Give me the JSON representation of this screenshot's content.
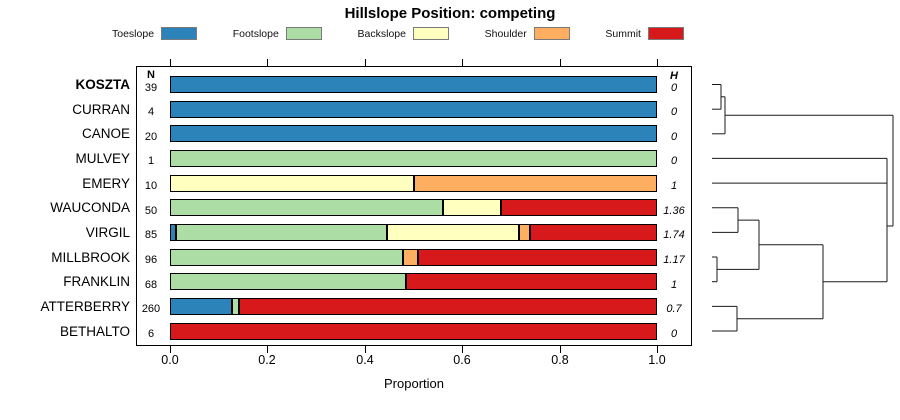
{
  "chart_data": {
    "type": "bar",
    "variant": "horizontal_stacked_proportion_with_dendrogram",
    "title": "Hillslope Position: competing",
    "xlabel": "Proportion",
    "xlim": [
      0,
      1
    ],
    "x_ticks": [
      "0.0",
      "0.2",
      "0.4",
      "0.6",
      "0.8",
      "1.0"
    ],
    "x_tick_values": [
      0,
      0.2,
      0.4,
      0.6,
      0.8,
      1.0
    ],
    "grid": false,
    "legend": {
      "position": "top",
      "entries": [
        {
          "label": "Toeslope",
          "color": "#2B83BA"
        },
        {
          "label": "Footslope",
          "color": "#ABDDA4"
        },
        {
          "label": "Backslope",
          "color": "#FFFFBF"
        },
        {
          "label": "Shoulder",
          "color": "#FDAE61"
        },
        {
          "label": "Summit",
          "color": "#D7191C"
        }
      ]
    },
    "columns": {
      "n_header": "N",
      "h_header": "H"
    },
    "rows": [
      {
        "series": "KOSZTA",
        "bold": true,
        "n": "39",
        "h": "0",
        "segments": [
          {
            "position": "Toeslope",
            "proportion": 1.0
          }
        ]
      },
      {
        "series": "CURRAN",
        "bold": false,
        "n": "4",
        "h": "0",
        "segments": [
          {
            "position": "Toeslope",
            "proportion": 1.0
          }
        ]
      },
      {
        "series": "CANOE",
        "bold": false,
        "n": "20",
        "h": "0",
        "segments": [
          {
            "position": "Toeslope",
            "proportion": 1.0
          }
        ]
      },
      {
        "series": "MULVEY",
        "bold": false,
        "n": "1",
        "h": "0",
        "segments": [
          {
            "position": "Footslope",
            "proportion": 1.0
          }
        ]
      },
      {
        "series": "EMERY",
        "bold": false,
        "n": "10",
        "h": "1",
        "segments": [
          {
            "position": "Backslope",
            "proportion": 0.5
          },
          {
            "position": "Shoulder",
            "proportion": 0.5
          }
        ]
      },
      {
        "series": "WAUCONDA",
        "bold": false,
        "n": "50",
        "h": "1.36",
        "segments": [
          {
            "position": "Footslope",
            "proportion": 0.56
          },
          {
            "position": "Backslope",
            "proportion": 0.12
          },
          {
            "position": "Summit",
            "proportion": 0.32
          }
        ]
      },
      {
        "series": "VIRGIL",
        "bold": false,
        "n": "85",
        "h": "1.74",
        "segments": [
          {
            "position": "Toeslope",
            "proportion": 0.012
          },
          {
            "position": "Footslope",
            "proportion": 0.434
          },
          {
            "position": "Backslope",
            "proportion": 0.271
          },
          {
            "position": "Shoulder",
            "proportion": 0.023
          },
          {
            "position": "Summit",
            "proportion": 0.26
          }
        ]
      },
      {
        "series": "MILLBROOK",
        "bold": false,
        "n": "96",
        "h": "1.17",
        "segments": [
          {
            "position": "Footslope",
            "proportion": 0.479
          },
          {
            "position": "Shoulder",
            "proportion": 0.031
          },
          {
            "position": "Summit",
            "proportion": 0.49
          }
        ]
      },
      {
        "series": "FRANKLIN",
        "bold": false,
        "n": "68",
        "h": "1",
        "segments": [
          {
            "position": "Footslope",
            "proportion": 0.485
          },
          {
            "position": "Summit",
            "proportion": 0.515
          }
        ]
      },
      {
        "series": "ATTERBERRY",
        "bold": false,
        "n": "260",
        "h": "0.7",
        "segments": [
          {
            "position": "Toeslope",
            "proportion": 0.127
          },
          {
            "position": "Footslope",
            "proportion": 0.015
          },
          {
            "position": "Summit",
            "proportion": 0.858
          }
        ]
      },
      {
        "series": "BETHALTO",
        "bold": false,
        "n": "6",
        "h": "0",
        "segments": [
          {
            "position": "Summit",
            "proportion": 1.0
          }
        ]
      }
    ],
    "dendrogram": {
      "description": "right-side cluster tree; segments as [heightOffsetPx1, rowIndex1, heightOffsetPx2, rowIndex2], 0 offset = leaf tips",
      "color": "#1a1a1a",
      "segments": [
        [
          0,
          0,
          9,
          0
        ],
        [
          0,
          1,
          9,
          1
        ],
        [
          9,
          0,
          9,
          1
        ],
        [
          9,
          0.5,
          13,
          0.5
        ],
        [
          0,
          2,
          13,
          2
        ],
        [
          13,
          0.5,
          13,
          2
        ],
        [
          13,
          1.25,
          181,
          1.25
        ],
        [
          0,
          3,
          175,
          3
        ],
        [
          0,
          4,
          175,
          4
        ],
        [
          0,
          5,
          26,
          5
        ],
        [
          0,
          6,
          26,
          6
        ],
        [
          26,
          5,
          26,
          6
        ],
        [
          26,
          5.5,
          47,
          5.5
        ],
        [
          0,
          7,
          5,
          7
        ],
        [
          0,
          8,
          5,
          8
        ],
        [
          5,
          7,
          5,
          8
        ],
        [
          5,
          7.5,
          47,
          7.5
        ],
        [
          47,
          5.5,
          47,
          7.5
        ],
        [
          47,
          6.5,
          111,
          6.5
        ],
        [
          0,
          9,
          25,
          9
        ],
        [
          0,
          10,
          25,
          10
        ],
        [
          25,
          9,
          25,
          10
        ],
        [
          25,
          9.5,
          111,
          9.5
        ],
        [
          111,
          6.5,
          111,
          9.5
        ],
        [
          111,
          8,
          175,
          8
        ],
        [
          175,
          3,
          175,
          8
        ],
        [
          175,
          5.74,
          181,
          5.74
        ],
        [
          181,
          1.25,
          181,
          5.74
        ]
      ]
    }
  }
}
